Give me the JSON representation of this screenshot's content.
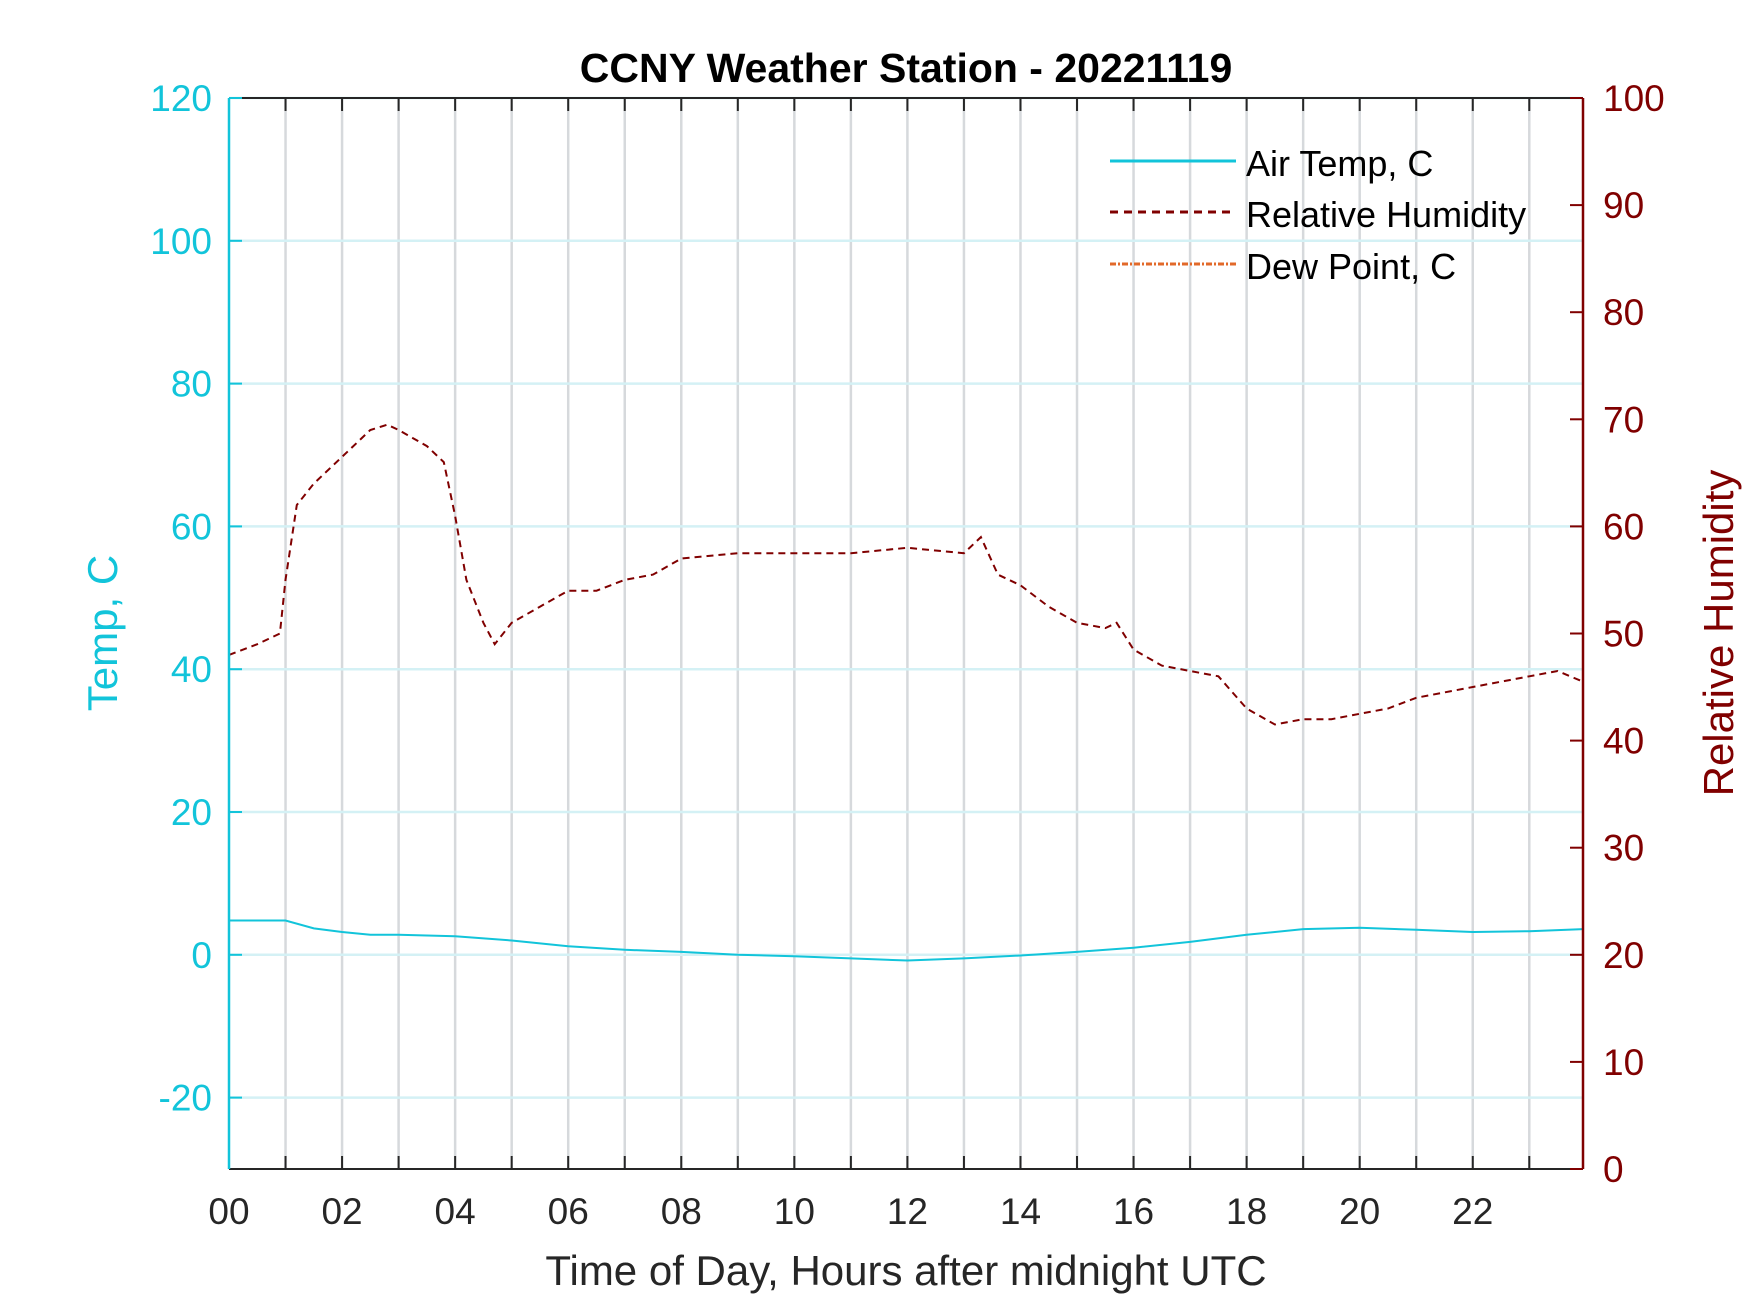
{
  "chart_data": {
    "type": "line",
    "title": "CCNY Weather Station - 20221119",
    "xlabel": "Time of Day, Hours after midnight UTC",
    "ylabel_left": "Temp, C",
    "ylabel_right": "Relative Humidity",
    "xlim": [
      0,
      23.95
    ],
    "ylim_left": [
      -30,
      120
    ],
    "ylim_right": [
      0,
      100
    ],
    "x_ticks": [
      0,
      2,
      4,
      6,
      8,
      10,
      12,
      14,
      16,
      18,
      20,
      22
    ],
    "x_tick_labels": [
      "00",
      "02",
      "04",
      "06",
      "08",
      "10",
      "12",
      "14",
      "16",
      "18",
      "20",
      "22"
    ],
    "left_ticks": [
      -20,
      0,
      20,
      40,
      60,
      80,
      100,
      120
    ],
    "left_tick_labels": [
      "-20",
      "0",
      "20",
      "40",
      "60",
      "80",
      "100",
      "120"
    ],
    "right_ticks": [
      0,
      10,
      20,
      30,
      40,
      50,
      60,
      70,
      80,
      90,
      100
    ],
    "right_tick_labels": [
      "0",
      "10",
      "20",
      "30",
      "40",
      "50",
      "60",
      "70",
      "80",
      "90",
      "100"
    ],
    "grid": "on",
    "legend_position": "top-right",
    "colors": {
      "left_axis": "#12C4DA",
      "right_axis": "#800000",
      "dew_point": "#E2692A"
    },
    "series": [
      {
        "name": "Air Temp, C",
        "axis": "left",
        "style": "solid",
        "x": [
          0,
          1,
          1.5,
          2,
          2.5,
          3,
          4,
          5,
          6,
          7,
          8,
          9,
          10,
          11,
          12,
          13,
          14,
          15,
          16,
          17,
          18,
          19,
          20,
          21,
          22,
          23,
          23.95
        ],
        "values": [
          4.8,
          4.8,
          3.7,
          3.2,
          2.8,
          2.8,
          2.6,
          2.0,
          1.2,
          0.7,
          0.4,
          0.0,
          -0.2,
          -0.5,
          -0.8,
          -0.5,
          -0.1,
          0.4,
          1.0,
          1.8,
          2.8,
          3.6,
          3.8,
          3.5,
          3.2,
          3.3,
          3.6
        ]
      },
      {
        "name": "Relative Humidity",
        "axis": "right",
        "style": "dashed",
        "x": [
          0,
          0.5,
          0.9,
          1.0,
          1.2,
          1.5,
          2,
          2.5,
          2.8,
          3,
          3.5,
          3.8,
          4.0,
          4.2,
          4.5,
          4.7,
          5,
          5.5,
          6,
          6.5,
          7,
          7.5,
          8,
          9,
          10,
          11,
          12,
          13,
          13.3,
          13.6,
          14,
          14.5,
          15,
          15.5,
          15.7,
          16,
          16.5,
          17,
          17.5,
          18,
          18.5,
          19,
          19.5,
          20,
          20.5,
          21,
          21.5,
          22,
          22.5,
          23,
          23.5,
          23.95
        ],
        "values": [
          48,
          49,
          50,
          55,
          62,
          64,
          66.5,
          69,
          69.5,
          69,
          67.5,
          66,
          61,
          55,
          51,
          49,
          51,
          52.5,
          54,
          54,
          55,
          55.5,
          57,
          57.5,
          57.5,
          57.5,
          58,
          57.5,
          59,
          55.5,
          54.5,
          52.5,
          51,
          50.5,
          51,
          48.5,
          47,
          46.5,
          46,
          43,
          41.5,
          42,
          42,
          42.5,
          43,
          44,
          44.5,
          45,
          45.5,
          46,
          46.5,
          45.5
        ]
      },
      {
        "name": "Dew Point, C",
        "axis": "left",
        "style": "dash-dot",
        "x": [],
        "values": []
      }
    ]
  }
}
